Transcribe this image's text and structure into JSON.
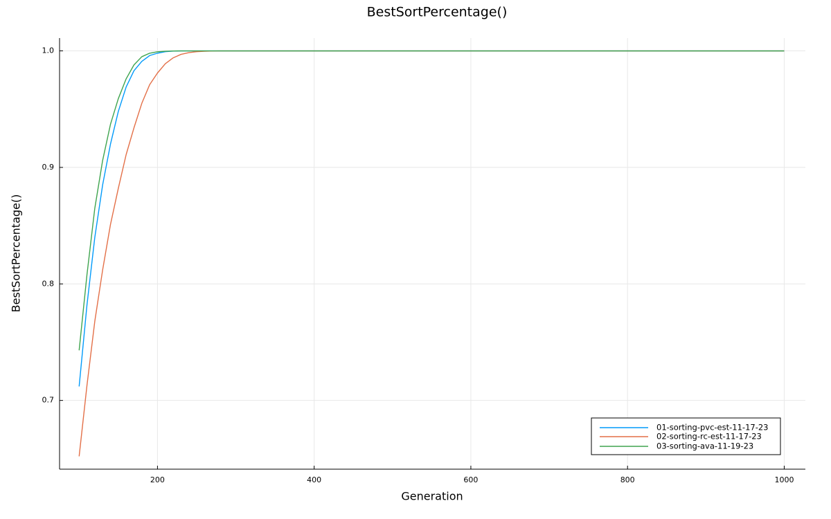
{
  "chart_data": {
    "type": "line",
    "title": "BestSortPercentage()",
    "xlabel": "Generation",
    "ylabel": "BestSortPercentage()",
    "xlim": [
      75,
      1027
    ],
    "ylim": [
      0.641,
      1.011
    ],
    "xticks": [
      200,
      400,
      600,
      800,
      1000
    ],
    "yticks": [
      0.7,
      0.8,
      0.9,
      1.0
    ],
    "xtick_labels": [
      "200",
      "400",
      "600",
      "800",
      "1000"
    ],
    "ytick_labels": [
      "0.7",
      "0.8",
      "0.9",
      "1.0"
    ],
    "grid": true,
    "legend_position": "bottom-right",
    "series": [
      {
        "name": "01-sorting-pvc-est-11-17-23",
        "color": "#009AFA",
        "x": [
          100,
          110,
          120,
          130,
          140,
          150,
          160,
          170,
          180,
          190,
          200,
          210,
          220,
          230,
          240,
          250,
          260,
          280,
          300,
          1000
        ],
        "y": [
          0.712,
          0.782,
          0.84,
          0.885,
          0.92,
          0.948,
          0.969,
          0.983,
          0.991,
          0.996,
          0.998,
          0.9993,
          0.9998,
          1.0,
          1.0,
          1.0,
          1.0,
          1.0,
          1.0,
          1.0
        ]
      },
      {
        "name": "02-sorting-rc-est-11-17-23",
        "color": "#E36F47",
        "x": [
          100,
          110,
          120,
          130,
          140,
          150,
          160,
          170,
          180,
          190,
          200,
          210,
          220,
          230,
          240,
          250,
          260,
          270,
          280,
          300,
          1000
        ],
        "y": [
          0.652,
          0.713,
          0.768,
          0.812,
          0.851,
          0.882,
          0.911,
          0.934,
          0.955,
          0.971,
          0.981,
          0.989,
          0.994,
          0.997,
          0.9985,
          0.9993,
          0.9997,
          0.9999,
          1.0,
          1.0,
          1.0
        ]
      },
      {
        "name": "03-sorting-ava-11-19-23",
        "color": "#3EA44E",
        "x": [
          100,
          110,
          120,
          130,
          140,
          150,
          160,
          170,
          180,
          190,
          200,
          210,
          220,
          230,
          240,
          260,
          300,
          1000
        ],
        "y": [
          0.743,
          0.808,
          0.865,
          0.906,
          0.937,
          0.959,
          0.976,
          0.988,
          0.995,
          0.998,
          0.9992,
          0.9997,
          0.9999,
          1.0,
          1.0,
          1.0,
          1.0,
          1.0
        ]
      }
    ]
  }
}
